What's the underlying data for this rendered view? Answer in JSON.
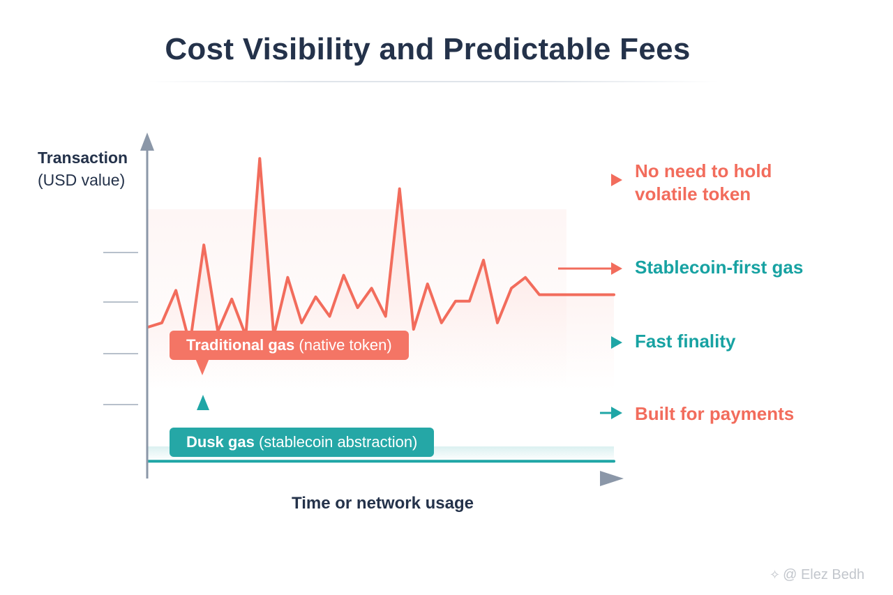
{
  "title": "Cost Visibility and Predictable Fees",
  "chart_data": {
    "type": "line",
    "ylabel_line1": "Transaction",
    "ylabel_line2": "(USD value)",
    "xlabel": "Time or network usage",
    "x": [
      0,
      3,
      6,
      9,
      12,
      15,
      18,
      21,
      24,
      27,
      30,
      33,
      36,
      39,
      42,
      45,
      48,
      51,
      54,
      57,
      60,
      63,
      66,
      69,
      72,
      75,
      78,
      81,
      84,
      87,
      90,
      93,
      96,
      99,
      100
    ],
    "series": [
      {
        "name": "Traditional gas (native token)",
        "color": "#f26c5c",
        "values": [
          70,
          72,
          87,
          62,
          108,
          68,
          83,
          66,
          148,
          66,
          93,
          72,
          84,
          75,
          94,
          79,
          88,
          75,
          134,
          69,
          90,
          72,
          82,
          82,
          101,
          72,
          88,
          93,
          85,
          85,
          85,
          85,
          85,
          85,
          85
        ]
      },
      {
        "name": "Dusk gas (stablecoin abstraction)",
        "color": "#1fa6a6",
        "values": [
          8,
          8,
          8,
          8,
          8,
          8,
          8,
          8,
          8,
          8,
          8,
          8,
          8,
          8,
          8,
          8,
          8,
          8,
          8,
          8,
          8,
          8,
          8,
          8,
          8,
          8,
          8,
          8,
          8,
          8,
          8,
          8,
          8,
          8,
          8
        ]
      }
    ],
    "annotations": [
      {
        "text": "No need to hold volatile token",
        "lines": [
          "No need to hold",
          "volatile token"
        ],
        "color": "#f26c5c"
      },
      {
        "text": "Stablecoin-first gas",
        "color": "#17a2a2"
      },
      {
        "text": "Fast finality",
        "color": "#17a2a2"
      },
      {
        "text": "Built for payments",
        "color": "#f26c5c"
      }
    ],
    "callouts": {
      "traditional": {
        "bold": "Traditional gas",
        "rest": " (native token)",
        "color": "#f47565"
      },
      "dusk": {
        "bold": "Dusk gas",
        "rest": " (stablecoin abstraction)",
        "color": "#25a7a6"
      }
    },
    "grid": false,
    "legend": "callouts"
  },
  "watermark": "@ Elez Bedh",
  "watermark_icon": "binance-diamond-icon"
}
